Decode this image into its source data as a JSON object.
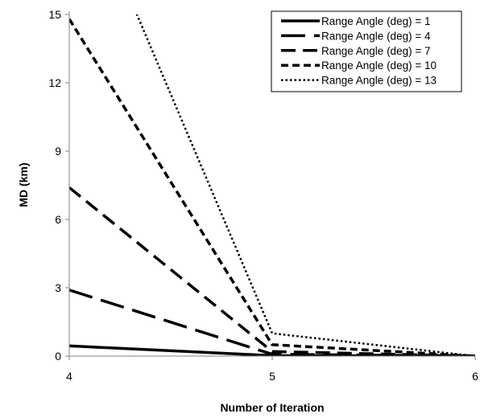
{
  "chart_data": {
    "type": "line",
    "title": "",
    "xlabel": "Number of Iteration",
    "ylabel": "MD (km)",
    "x": [
      4,
      5,
      6
    ],
    "xlim": [
      4,
      6
    ],
    "xticks": [
      "4",
      "5",
      "6"
    ],
    "ylim": [
      0,
      15
    ],
    "yticks": [
      "0",
      "3",
      "6",
      "9",
      "12",
      "15"
    ],
    "grid": false,
    "legend_position": "top-right",
    "series": [
      {
        "name": "Range Angle (deg) = 1",
        "values": [
          0.45,
          0.02,
          0.0
        ],
        "dash": "solid"
      },
      {
        "name": "Range Angle (deg) = 4",
        "values": [
          2.9,
          0.08,
          0.0
        ],
        "dash": "long-dash"
      },
      {
        "name": "Range Angle (deg) = 7",
        "values": [
          7.4,
          0.2,
          0.0
        ],
        "dash": "dash"
      },
      {
        "name": "Range Angle (deg) = 10",
        "values": [
          14.8,
          0.5,
          0.0
        ],
        "dash": "short-dash"
      },
      {
        "name": "Range Angle (deg) = 13",
        "values": [
          22.0,
          1.0,
          0.0
        ],
        "dash": "dot"
      }
    ]
  }
}
